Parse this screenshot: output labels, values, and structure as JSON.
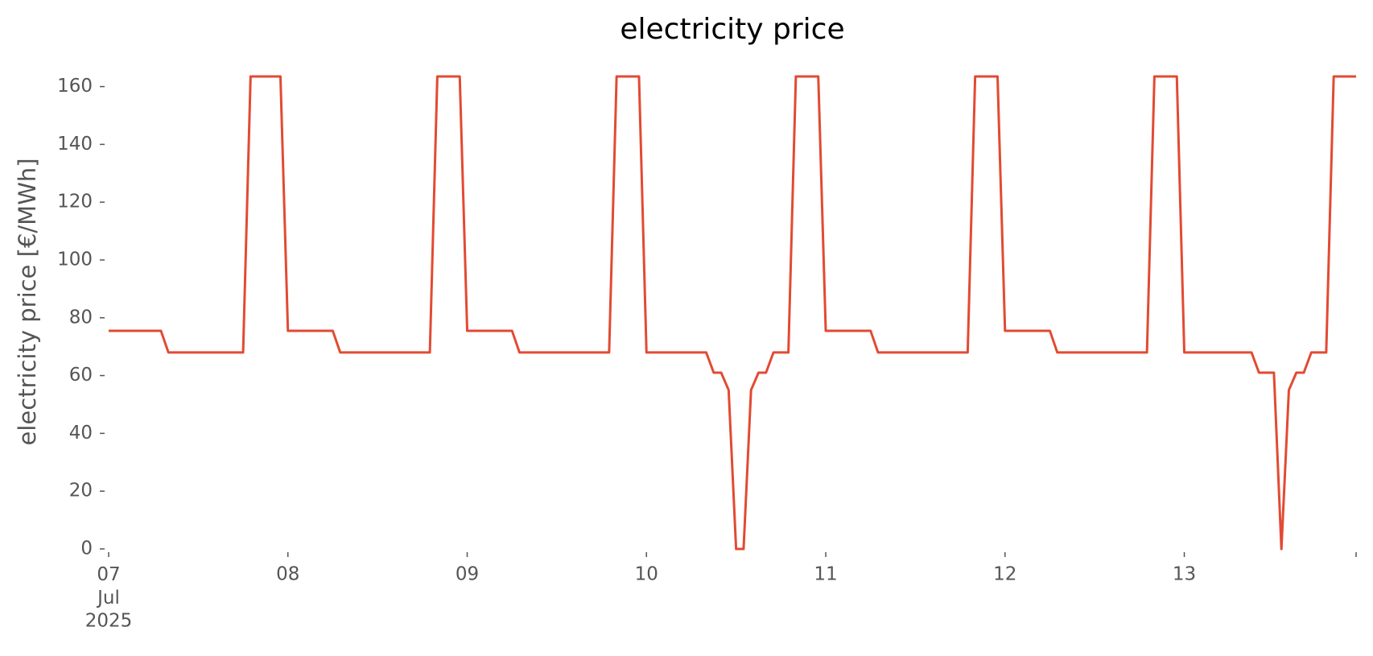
{
  "chart_data": {
    "type": "line",
    "title": "electricity price",
    "y_label": "electricity price [€/MWh]",
    "color": "#e24a33",
    "categories": [
      "07\nJul\n2025",
      null,
      null,
      null,
      null,
      null,
      null,
      null,
      null,
      null,
      null,
      null,
      null,
      null,
      null,
      null,
      null,
      null,
      null,
      null,
      null,
      null,
      null,
      null,
      "08",
      null,
      null,
      null,
      null,
      null,
      null,
      null,
      null,
      null,
      null,
      null,
      null,
      null,
      null,
      null,
      null,
      null,
      null,
      null,
      null,
      null,
      null,
      null,
      "09",
      null,
      null,
      null,
      null,
      null,
      null,
      null,
      null,
      null,
      null,
      null,
      null,
      null,
      null,
      null,
      null,
      null,
      null,
      null,
      null,
      null,
      null,
      null,
      "10",
      null,
      null,
      null,
      null,
      null,
      null,
      null,
      null,
      null,
      null,
      null,
      null,
      null,
      null,
      null,
      null,
      null,
      null,
      null,
      null,
      null,
      null,
      null,
      "11",
      null,
      null,
      null,
      null,
      null,
      null,
      null,
      null,
      null,
      null,
      null,
      null,
      null,
      null,
      null,
      null,
      null,
      null,
      null,
      null,
      null,
      null,
      null,
      "12",
      null,
      null,
      null,
      null,
      null,
      null,
      null,
      null,
      null,
      null,
      null,
      null,
      null,
      null,
      null,
      null,
      null,
      null,
      null,
      null,
      null,
      null,
      null,
      "13",
      null,
      null,
      null,
      null,
      null,
      null,
      null,
      null,
      null,
      null,
      null,
      null,
      null,
      null,
      null,
      null,
      null,
      null,
      null,
      null,
      null,
      null,
      null
    ],
    "values": [
      75.5,
      75.5,
      75.5,
      75.5,
      75.5,
      75.5,
      75.5,
      75.5,
      68,
      68,
      68,
      68,
      68,
      68,
      68,
      68,
      68,
      68,
      68,
      163.5,
      163.5,
      163.5,
      163.5,
      163.5,
      75.5,
      75.5,
      75.5,
      75.5,
      75.5,
      75.5,
      75.5,
      68,
      68,
      68,
      68,
      68,
      68,
      68,
      68,
      68,
      68,
      68,
      68,
      68,
      163.5,
      163.5,
      163.5,
      163.5,
      75.5,
      75.5,
      75.5,
      75.5,
      75.5,
      75.5,
      75.5,
      68,
      68,
      68,
      68,
      68,
      68,
      68,
      68,
      68,
      68,
      68,
      68,
      68,
      163.5,
      163.5,
      163.5,
      163.5,
      68,
      68,
      68,
      68,
      68,
      68,
      68,
      68,
      68,
      61,
      61,
      55,
      0,
      0,
      55,
      61,
      61,
      68,
      68,
      68,
      163.5,
      163.5,
      163.5,
      163.5,
      75.5,
      75.5,
      75.5,
      75.5,
      75.5,
      75.5,
      75.5,
      68,
      68,
      68,
      68,
      68,
      68,
      68,
      68,
      68,
      68,
      68,
      68,
      68,
      163.5,
      163.5,
      163.5,
      163.5,
      75.5,
      75.5,
      75.5,
      75.5,
      75.5,
      75.5,
      75.5,
      68,
      68,
      68,
      68,
      68,
      68,
      68,
      68,
      68,
      68,
      68,
      68,
      68,
      163.5,
      163.5,
      163.5,
      163.5,
      68,
      68,
      68,
      68,
      68,
      68,
      68,
      68,
      68,
      68,
      61,
      61,
      61,
      0,
      55,
      61,
      61,
      68,
      68,
      68,
      163.5,
      163.5,
      163.5,
      163.5
    ],
    "ylim": [
      0,
      163.5
    ],
    "yticks": [
      0,
      20,
      40,
      60,
      80,
      100,
      120,
      140,
      160
    ],
    "grid": false
  }
}
